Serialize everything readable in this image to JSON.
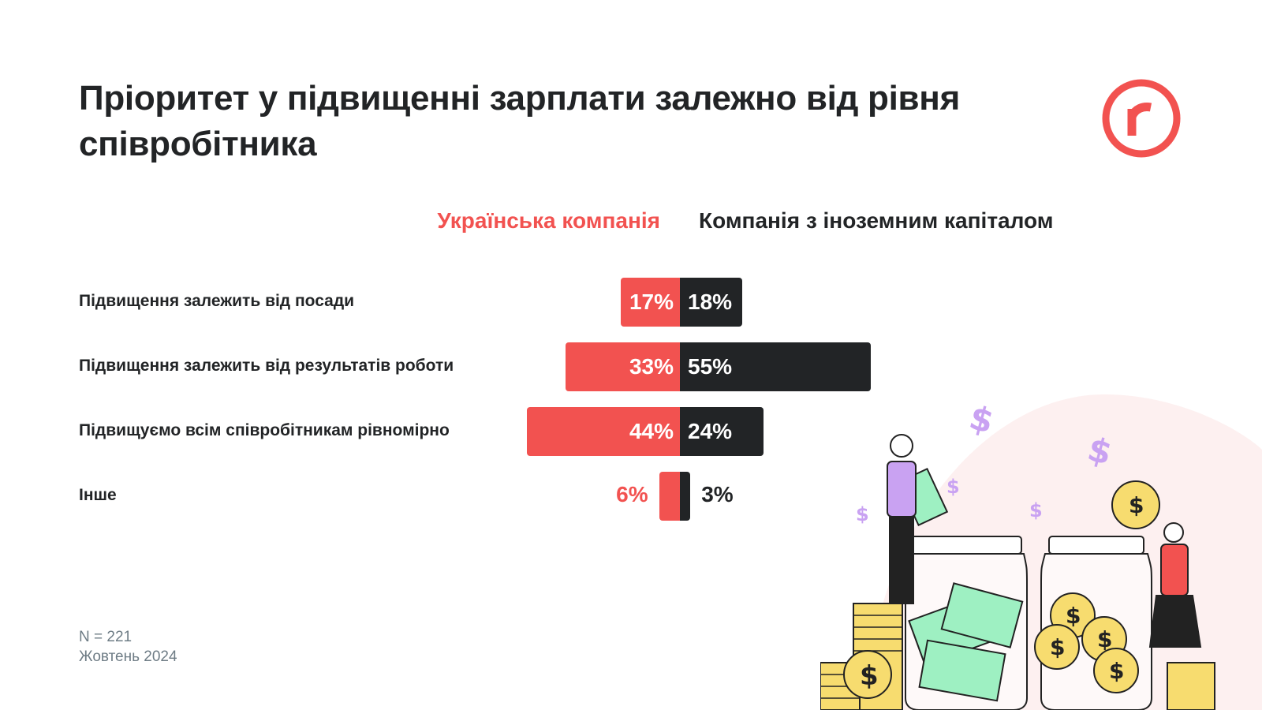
{
  "title": "Пріоритет у підвищенні зарплати залежно від рівня співробітника",
  "logo": {
    "letter": "r",
    "color": "#f25250"
  },
  "chart_data": {
    "type": "bar",
    "orientation": "horizontal-diverging",
    "categories": [
      "Підвищення залежить від посади",
      "Підвищення залежить від результатів роботи",
      "Підвищуємо всім співробітникам рівномірно",
      "Інше"
    ],
    "series": [
      {
        "name": "Українська компанія",
        "values": [
          17,
          33,
          44,
          6
        ],
        "color": "#f25250",
        "direction": "left"
      },
      {
        "name": "Компанія з іноземним капіталом",
        "values": [
          18,
          55,
          24,
          3
        ],
        "color": "#222426",
        "direction": "right"
      }
    ],
    "value_labels": {
      "ua": [
        "17%",
        "33%",
        "44%",
        "6%"
      ],
      "foreign": [
        "18%",
        "55%",
        "24%",
        "3%"
      ]
    },
    "unit": "%",
    "legend": "top-center"
  },
  "footer": {
    "sample": "N = 221",
    "date": "Жовтень 2024"
  },
  "colors": {
    "accent": "#f25250",
    "dark": "#222426",
    "muted": "#6e7c85"
  },
  "illustration": {
    "icon": "money-jars-illustration"
  }
}
